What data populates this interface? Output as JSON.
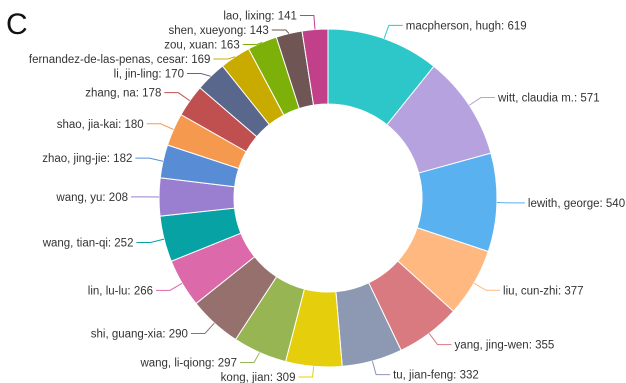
{
  "panel_label": "C",
  "chart_data": {
    "type": "pie",
    "donut": true,
    "legend": "none",
    "slices": [
      {
        "label": "macpherson, hugh: 619",
        "value": 619,
        "color": "#2ec7c9"
      },
      {
        "label": "witt, claudia m.: 571",
        "value": 571,
        "color": "#b6a2de"
      },
      {
        "label": "lewith, george: 540",
        "value": 540,
        "color": "#5ab1ef"
      },
      {
        "label": "liu, cun-zhi: 377",
        "value": 377,
        "color": "#ffb980"
      },
      {
        "label": "yang, jing-wen: 355",
        "value": 355,
        "color": "#d87a80"
      },
      {
        "label": "tu, jian-feng: 332",
        "value": 332,
        "color": "#8d98b3"
      },
      {
        "label": "kong, jian: 309",
        "value": 309,
        "color": "#e5cf0d"
      },
      {
        "label": "wang, li-qiong: 297",
        "value": 297,
        "color": "#97b552"
      },
      {
        "label": "shi, guang-xia: 290",
        "value": 290,
        "color": "#95706d"
      },
      {
        "label": "lin, lu-lu: 266",
        "value": 266,
        "color": "#dc69aa"
      },
      {
        "label": "wang, tian-qi: 252",
        "value": 252,
        "color": "#07a2a4"
      },
      {
        "label": "wang, yu: 208",
        "value": 208,
        "color": "#9a7fd1"
      },
      {
        "label": "zhao, jing-jie: 182",
        "value": 182,
        "color": "#588dd5"
      },
      {
        "label": "shao, jia-kai: 180",
        "value": 180,
        "color": "#f5994e"
      },
      {
        "label": "zhang, na: 178",
        "value": 178,
        "color": "#c05050"
      },
      {
        "label": "li, jin-ling: 170",
        "value": 170,
        "color": "#59678c"
      },
      {
        "label": "fernandez-de-las-penas, cesar: 169",
        "value": 169,
        "color": "#c9ab00"
      },
      {
        "label": "zou, xuan: 163",
        "value": 163,
        "color": "#7eb00a"
      },
      {
        "label": "shen, xueyong: 143",
        "value": 143,
        "color": "#6f5553"
      },
      {
        "label": "lao, lixing: 141",
        "value": 141,
        "color": "#c14089"
      }
    ]
  }
}
